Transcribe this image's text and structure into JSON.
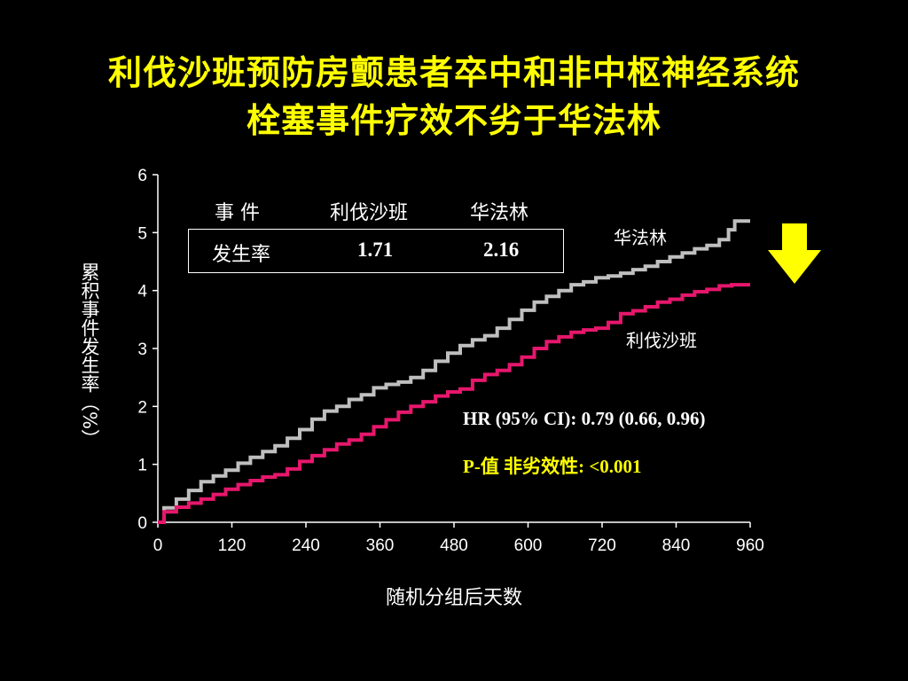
{
  "title": {
    "line1": "利伐沙班预防房颤患者卒中和非中枢神经系统",
    "line2": "栓塞事件疗效不劣于华法林"
  },
  "colors": {
    "title": "#ffff00",
    "background": "#000000",
    "warfarin_line": "#bfbfbf",
    "rivaroxaban_line": "#e6176c",
    "arrow": "#ffff00"
  },
  "rate_table": {
    "header_event": "事   件",
    "header_col1": "利伐沙班",
    "header_col2": "华法林",
    "row_label": "发生率",
    "value_col1": "1.71",
    "value_col2": "2.16"
  },
  "annotations": {
    "hr": "HR (95% CI): 0.79 (0.66, 0.96)",
    "p_value": "P-值 非劣效性: <0.001",
    "arrow_icon": "down-arrow-icon"
  },
  "chart_data": {
    "type": "line",
    "title": "",
    "xlabel": "随机分组后天数",
    "ylabel": "累积事件发生率（%）",
    "xlim": [
      0,
      960
    ],
    "ylim": [
      0,
      6
    ],
    "x_ticks": [
      "0",
      "120",
      "240",
      "360",
      "480",
      "600",
      "720",
      "840",
      "960"
    ],
    "y_ticks": [
      "0",
      "1",
      "2",
      "3",
      "4",
      "5",
      "6"
    ],
    "grid": false,
    "series": [
      {
        "name": "华法林",
        "color": "#bfbfbf",
        "x": [
          0,
          20,
          40,
          60,
          80,
          100,
          120,
          140,
          160,
          180,
          200,
          220,
          240,
          260,
          280,
          300,
          320,
          340,
          360,
          380,
          400,
          420,
          440,
          460,
          480,
          500,
          520,
          540,
          560,
          580,
          600,
          620,
          640,
          660,
          680,
          700,
          720,
          740,
          760,
          780,
          800,
          820,
          840,
          860,
          880,
          900,
          920,
          930,
          940,
          960
        ],
        "y": [
          0,
          0.25,
          0.4,
          0.55,
          0.7,
          0.8,
          0.9,
          1.02,
          1.12,
          1.22,
          1.32,
          1.45,
          1.6,
          1.78,
          1.92,
          2.0,
          2.12,
          2.2,
          2.32,
          2.38,
          2.42,
          2.5,
          2.62,
          2.78,
          2.92,
          3.05,
          3.15,
          3.22,
          3.35,
          3.5,
          3.66,
          3.8,
          3.9,
          4.0,
          4.1,
          4.15,
          4.22,
          4.25,
          4.3,
          4.36,
          4.42,
          4.5,
          4.58,
          4.65,
          4.72,
          4.78,
          4.88,
          5.05,
          5.2,
          5.2
        ]
      },
      {
        "name": "利伐沙班",
        "color": "#e6176c",
        "x": [
          0,
          20,
          40,
          60,
          80,
          100,
          120,
          140,
          160,
          180,
          200,
          220,
          240,
          260,
          280,
          300,
          320,
          340,
          360,
          380,
          400,
          420,
          440,
          460,
          480,
          500,
          520,
          540,
          560,
          580,
          600,
          620,
          640,
          660,
          680,
          700,
          720,
          740,
          760,
          780,
          800,
          820,
          840,
          860,
          880,
          900,
          920,
          940,
          960
        ],
        "y": [
          0,
          0.18,
          0.26,
          0.33,
          0.4,
          0.48,
          0.57,
          0.65,
          0.72,
          0.78,
          0.82,
          0.92,
          1.05,
          1.15,
          1.25,
          1.35,
          1.42,
          1.52,
          1.65,
          1.77,
          1.9,
          2.0,
          2.08,
          2.18,
          2.25,
          2.3,
          2.45,
          2.55,
          2.62,
          2.72,
          2.85,
          3.0,
          3.12,
          3.2,
          3.28,
          3.32,
          3.35,
          3.45,
          3.6,
          3.65,
          3.72,
          3.8,
          3.85,
          3.92,
          3.98,
          4.02,
          4.08,
          4.1,
          4.1
        ]
      }
    ]
  }
}
